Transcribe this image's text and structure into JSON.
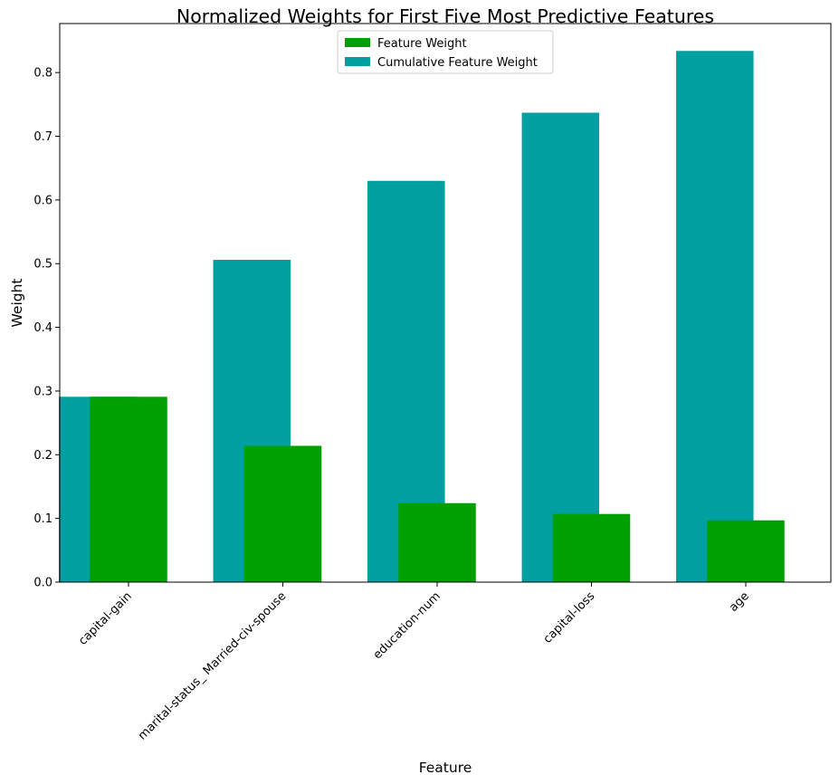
{
  "chart_data": {
    "type": "bar",
    "title": "Normalized Weights for First Five Most Predictive Features",
    "xlabel": "Feature",
    "ylabel": "Weight",
    "categories": [
      "capital-gain",
      "marital-status_ Married-civ-spouse",
      "education-num",
      "capital-loss",
      "age"
    ],
    "series": [
      {
        "name": "Feature Weight",
        "color": "#00a000",
        "values": [
          0.291,
          0.214,
          0.124,
          0.107,
          0.097
        ]
      },
      {
        "name": "Cumulative Feature Weight",
        "color": "#00a0a0",
        "values": [
          0.291,
          0.506,
          0.63,
          0.737,
          0.834
        ]
      }
    ],
    "ylim": [
      0,
      0.877
    ],
    "yticks": [
      0.0,
      0.1,
      0.2,
      0.3,
      0.4,
      0.5,
      0.6,
      0.7,
      0.8
    ],
    "grid": false,
    "legend_position": "top-center"
  }
}
